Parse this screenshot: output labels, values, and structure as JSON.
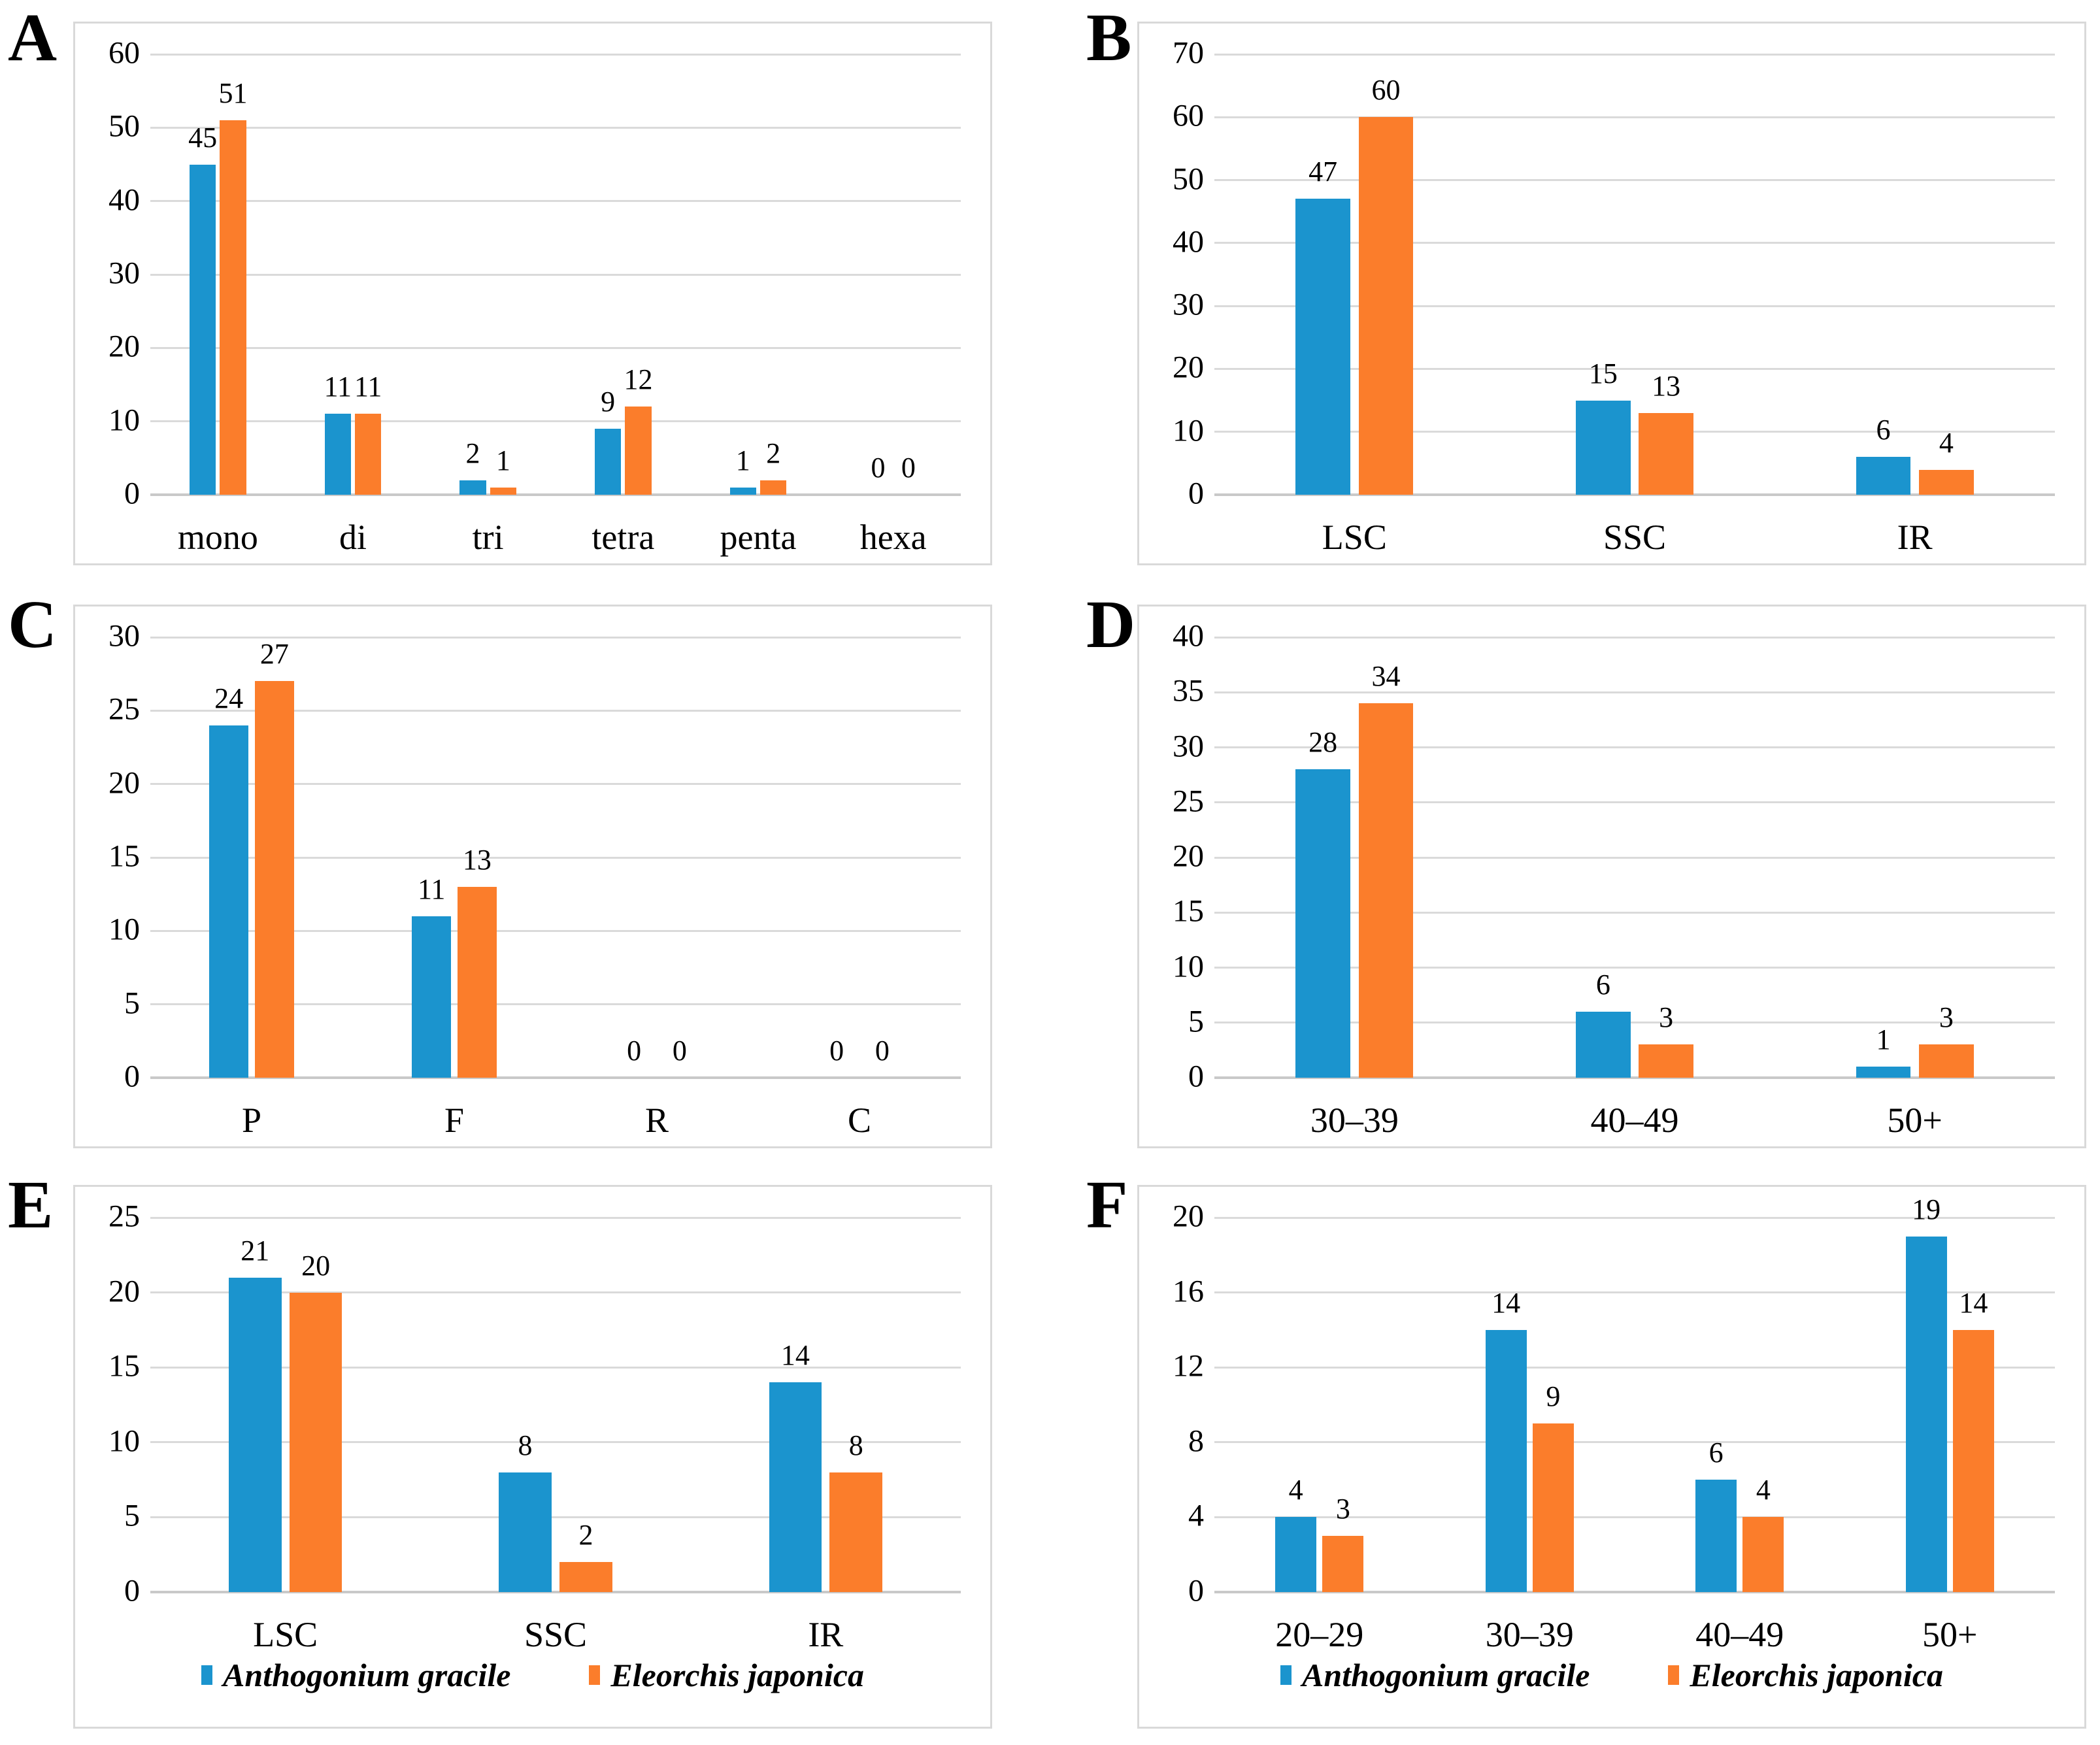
{
  "figure": {
    "description": "Six-panel grouped bar chart figure comparing two species",
    "colors": {
      "series1": "#1B94CE",
      "series2": "#FB7D2B",
      "gridline": "#DADADA",
      "axis_baseline": "#C9C9C9",
      "panel_border": "#D9D9D9"
    },
    "legend_series": [
      "Anthogonium gracile",
      "Eleorchis japonica"
    ]
  },
  "chart_data": [
    {
      "type": "bar",
      "letter": "A",
      "ylim": [
        0,
        60
      ],
      "ystep": 10,
      "grid": true,
      "legend": false,
      "categories": [
        "mono",
        "di",
        "tri",
        "tetra",
        "penta",
        "hexa"
      ],
      "series": [
        {
          "name": "Anthogonium gracile",
          "color": "#1B94CE",
          "values": [
            45,
            11,
            2,
            9,
            1,
            0
          ]
        },
        {
          "name": "Eleorchis japonica",
          "color": "#FB7D2B",
          "values": [
            51,
            11,
            1,
            12,
            2,
            0
          ]
        }
      ]
    },
    {
      "type": "bar",
      "letter": "B",
      "ylim": [
        0,
        70
      ],
      "ystep": 10,
      "grid": true,
      "legend": false,
      "categories": [
        "LSC",
        "SSC",
        "IR"
      ],
      "series": [
        {
          "name": "Anthogonium gracile",
          "color": "#1B94CE",
          "values": [
            47,
            15,
            6
          ]
        },
        {
          "name": "Eleorchis japonica",
          "color": "#FB7D2B",
          "values": [
            60,
            13,
            4
          ]
        }
      ]
    },
    {
      "type": "bar",
      "letter": "C",
      "ylim": [
        0,
        30
      ],
      "ystep": 5,
      "grid": true,
      "legend": false,
      "categories": [
        "P",
        "F",
        "R",
        "C"
      ],
      "series": [
        {
          "name": "Anthogonium gracile",
          "color": "#1B94CE",
          "values": [
            24,
            11,
            0,
            0
          ]
        },
        {
          "name": "Eleorchis japonica",
          "color": "#FB7D2B",
          "values": [
            27,
            13,
            0,
            0
          ]
        }
      ]
    },
    {
      "type": "bar",
      "letter": "D",
      "ylim": [
        0,
        40
      ],
      "ystep": 5,
      "grid": true,
      "legend": false,
      "categories": [
        "30–39",
        "40–49",
        "50+"
      ],
      "series": [
        {
          "name": "Anthogonium gracile",
          "color": "#1B94CE",
          "values": [
            28,
            6,
            1
          ]
        },
        {
          "name": "Eleorchis japonica",
          "color": "#FB7D2B",
          "values": [
            34,
            3,
            3
          ]
        }
      ]
    },
    {
      "type": "bar",
      "letter": "E",
      "ylim": [
        0,
        25
      ],
      "ystep": 5,
      "grid": true,
      "legend": true,
      "categories": [
        "LSC",
        "SSC",
        "IR"
      ],
      "series": [
        {
          "name": "Anthogonium gracile",
          "color": "#1B94CE",
          "values": [
            21,
            8,
            14
          ]
        },
        {
          "name": "Eleorchis japonica",
          "color": "#FB7D2B",
          "values": [
            20,
            2,
            8
          ]
        }
      ]
    },
    {
      "type": "bar",
      "letter": "F",
      "ylim": [
        0,
        20
      ],
      "ystep": 4,
      "grid": true,
      "legend": true,
      "categories": [
        "20–29",
        "30–39",
        "40–49",
        "50+"
      ],
      "series": [
        {
          "name": "Anthogonium gracile",
          "color": "#1B94CE",
          "values": [
            4,
            14,
            6,
            19
          ]
        },
        {
          "name": "Eleorchis japonica",
          "color": "#FB7D2B",
          "values": [
            3,
            9,
            4,
            14
          ]
        }
      ]
    }
  ]
}
